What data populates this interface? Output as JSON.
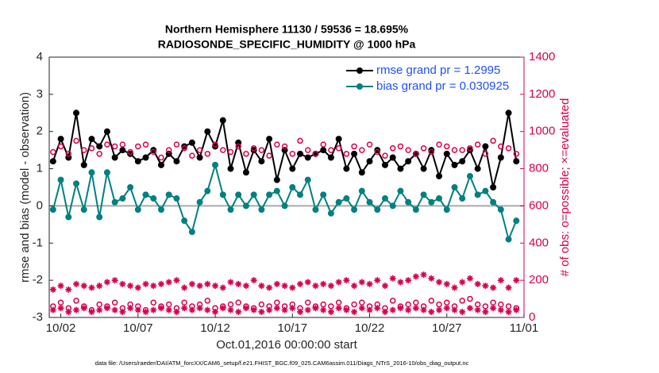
{
  "chart_data": {
    "type": "line",
    "title": "Northern Hemisphere 11130 / 59536 = 18.695%",
    "subtitle": "RADIOSONDE_SPECIFIC_HUMIDITY @ 1000 hPa",
    "ylabel": "rmse and bias (model - observation)",
    "y2label": "# of obs: o=possible; ×=evaluated",
    "xlabel": "Oct.01,2016 00:00:00 start",
    "footnote": "data file: /Users/raeder/DAI/ATM_forcXX/CAM6_setup/f.e21.FHIST_BGC.f09_025.CAM6assim.011/Diags_NTrS_2016-10/obs_diag_output.nc",
    "x": [
      0.5,
      1,
      1.5,
      2,
      2.5,
      3,
      3.5,
      4,
      4.5,
      5,
      5.5,
      6,
      6.5,
      7,
      7.5,
      8,
      8.5,
      9,
      9.5,
      10,
      10.5,
      11,
      11.5,
      12,
      12.5,
      13,
      13.5,
      14,
      14.5,
      15,
      15.5,
      16,
      16.5,
      17,
      17.5,
      18,
      18.5,
      19,
      19.5,
      20,
      20.5,
      21,
      21.5,
      22,
      22.5,
      23,
      23.5,
      24,
      24.5,
      25,
      25.5,
      26,
      26.5,
      27,
      27.5,
      28,
      28.5,
      29,
      29.5,
      30,
      30.5
    ],
    "series": [
      {
        "name": "rmse grand pr = 1.2995",
        "color": "#000000",
        "marker": "filled",
        "line": true,
        "values": [
          1.2,
          1.8,
          1.3,
          2.5,
          1.1,
          1.8,
          1.6,
          2.0,
          1.3,
          1.5,
          1.4,
          1.2,
          1.3,
          1.5,
          1.1,
          1.4,
          1.2,
          1.6,
          1.7,
          1.3,
          2.0,
          1.6,
          2.3,
          1.0,
          1.7,
          0.9,
          1.5,
          1.2,
          1.8,
          0.7,
          1.5,
          1.0,
          1.4,
          1.3,
          1.4,
          1.5,
          1.3,
          1.8,
          1.0,
          1.4,
          0.9,
          1.2,
          1.5,
          1.1,
          1.3,
          1.0,
          1.2,
          1.4,
          1.0,
          1.5,
          0.8,
          1.4,
          1.1,
          1.2,
          1.5,
          1.0,
          1.6,
          0.5,
          1.3,
          2.5,
          1.2
        ]
      },
      {
        "name": "bias grand pr = 0.030925",
        "color": "#008080",
        "marker": "filled",
        "line": true,
        "values": [
          -0.1,
          0.7,
          -0.3,
          0.6,
          -0.1,
          0.9,
          -0.3,
          0.9,
          0.1,
          0.2,
          0.5,
          -0.1,
          0.3,
          0.2,
          -0.1,
          0.3,
          0.2,
          -0.4,
          -0.7,
          0.1,
          0.4,
          1.1,
          0.3,
          -0.1,
          0.3,
          0.0,
          0.3,
          -0.1,
          0.3,
          0.4,
          0.0,
          0.5,
          0.3,
          0.7,
          -0.1,
          0.3,
          -0.2,
          0.1,
          0.2,
          -0.1,
          0.4,
          0.1,
          -0.1,
          0.2,
          0.0,
          0.4,
          0.1,
          -0.1,
          0.3,
          0.1,
          0.2,
          -0.1,
          0.5,
          0.2,
          0.8,
          0.3,
          0.4,
          0.1,
          -0.1,
          -0.9,
          -0.4
        ]
      },
      {
        "color": "#d6004f",
        "marker": "o",
        "line": false,
        "axis": "y2",
        "values": [
          890,
          920,
          880,
          950,
          900,
          910,
          880,
          930,
          920,
          930,
          890,
          920,
          930,
          890,
          860,
          900,
          930,
          910,
          870,
          900,
          880,
          930,
          900,
          890,
          920,
          880,
          910,
          900,
          870,
          930,
          920,
          880,
          950,
          900,
          880,
          930,
          900,
          910,
          880,
          920,
          900,
          930,
          890,
          870,
          910,
          920,
          900,
          880,
          910,
          890,
          930,
          920,
          900,
          900,
          910,
          930,
          880,
          950,
          920,
          910,
          880
        ]
      },
      {
        "color": "#d6004f",
        "marker": "*",
        "line": false,
        "axis": "y2",
        "values": [
          150,
          170,
          150,
          180,
          170,
          160,
          170,
          190,
          200,
          180,
          170,
          160,
          180,
          170,
          180,
          190,
          200,
          160,
          180,
          170,
          180,
          170,
          160,
          190,
          180,
          170,
          200,
          170,
          160,
          180,
          170,
          160,
          180,
          190,
          170,
          180,
          170,
          190,
          200,
          170,
          190,
          180,
          200,
          170,
          210,
          190,
          200,
          220,
          230,
          210,
          190,
          180,
          160,
          190,
          210,
          180,
          170,
          160,
          200,
          160,
          200
        ]
      },
      {
        "color": "#d6004f",
        "marker": "o",
        "line": false,
        "axis": "y2",
        "values": [
          60,
          80,
          50,
          90,
          60,
          40,
          70,
          60,
          80,
          50,
          70,
          60,
          40,
          80,
          60,
          70,
          50,
          80,
          60,
          70,
          90,
          50,
          60,
          70,
          80,
          60,
          50,
          70,
          60,
          80,
          60,
          70,
          50,
          80,
          60,
          70,
          60,
          80,
          50,
          70,
          80,
          60,
          70,
          50,
          90,
          60,
          70,
          80,
          60,
          90,
          70,
          80,
          60,
          90,
          100,
          70,
          60,
          80,
          70,
          60,
          50
        ]
      },
      {
        "color": "#d6004f",
        "marker": "*",
        "line": false,
        "axis": "y2",
        "values": [
          40,
          50,
          30,
          40,
          50,
          30,
          40,
          50,
          40,
          30,
          50,
          40,
          30,
          40,
          50,
          40,
          30,
          50,
          40,
          50,
          40,
          30,
          50,
          40,
          30,
          50,
          40,
          30,
          40,
          50,
          40,
          50,
          30,
          40,
          50,
          40,
          30,
          50,
          40,
          30,
          50,
          40,
          50,
          30,
          40,
          50,
          40,
          50,
          40,
          30,
          40,
          50,
          40,
          30,
          50,
          40,
          30,
          50,
          40,
          30,
          40
        ]
      }
    ],
    "xlim": [
      0.25,
      31
    ],
    "xticks": [
      {
        "value": 1,
        "label": "10/02"
      },
      {
        "value": 6,
        "label": "10/07"
      },
      {
        "value": 11,
        "label": "10/12"
      },
      {
        "value": 16,
        "label": "10/17"
      },
      {
        "value": 21,
        "label": "10/22"
      },
      {
        "value": 26,
        "label": "10/27"
      },
      {
        "value": 31,
        "label": "11/01"
      }
    ],
    "ylim": [
      -3,
      4
    ],
    "yticks": [
      -3,
      -2,
      -1,
      0,
      1,
      2,
      3,
      4
    ],
    "y2lim": [
      0,
      1400
    ],
    "y2ticks": [
      0,
      200,
      400,
      600,
      800,
      1000,
      1200,
      1400
    ],
    "y2color": "#d6004f",
    "hline": 0,
    "hline_color": "#aaaaaa",
    "legend": "northeast",
    "legend_text_color": "#1f4fff",
    "grid": false
  }
}
